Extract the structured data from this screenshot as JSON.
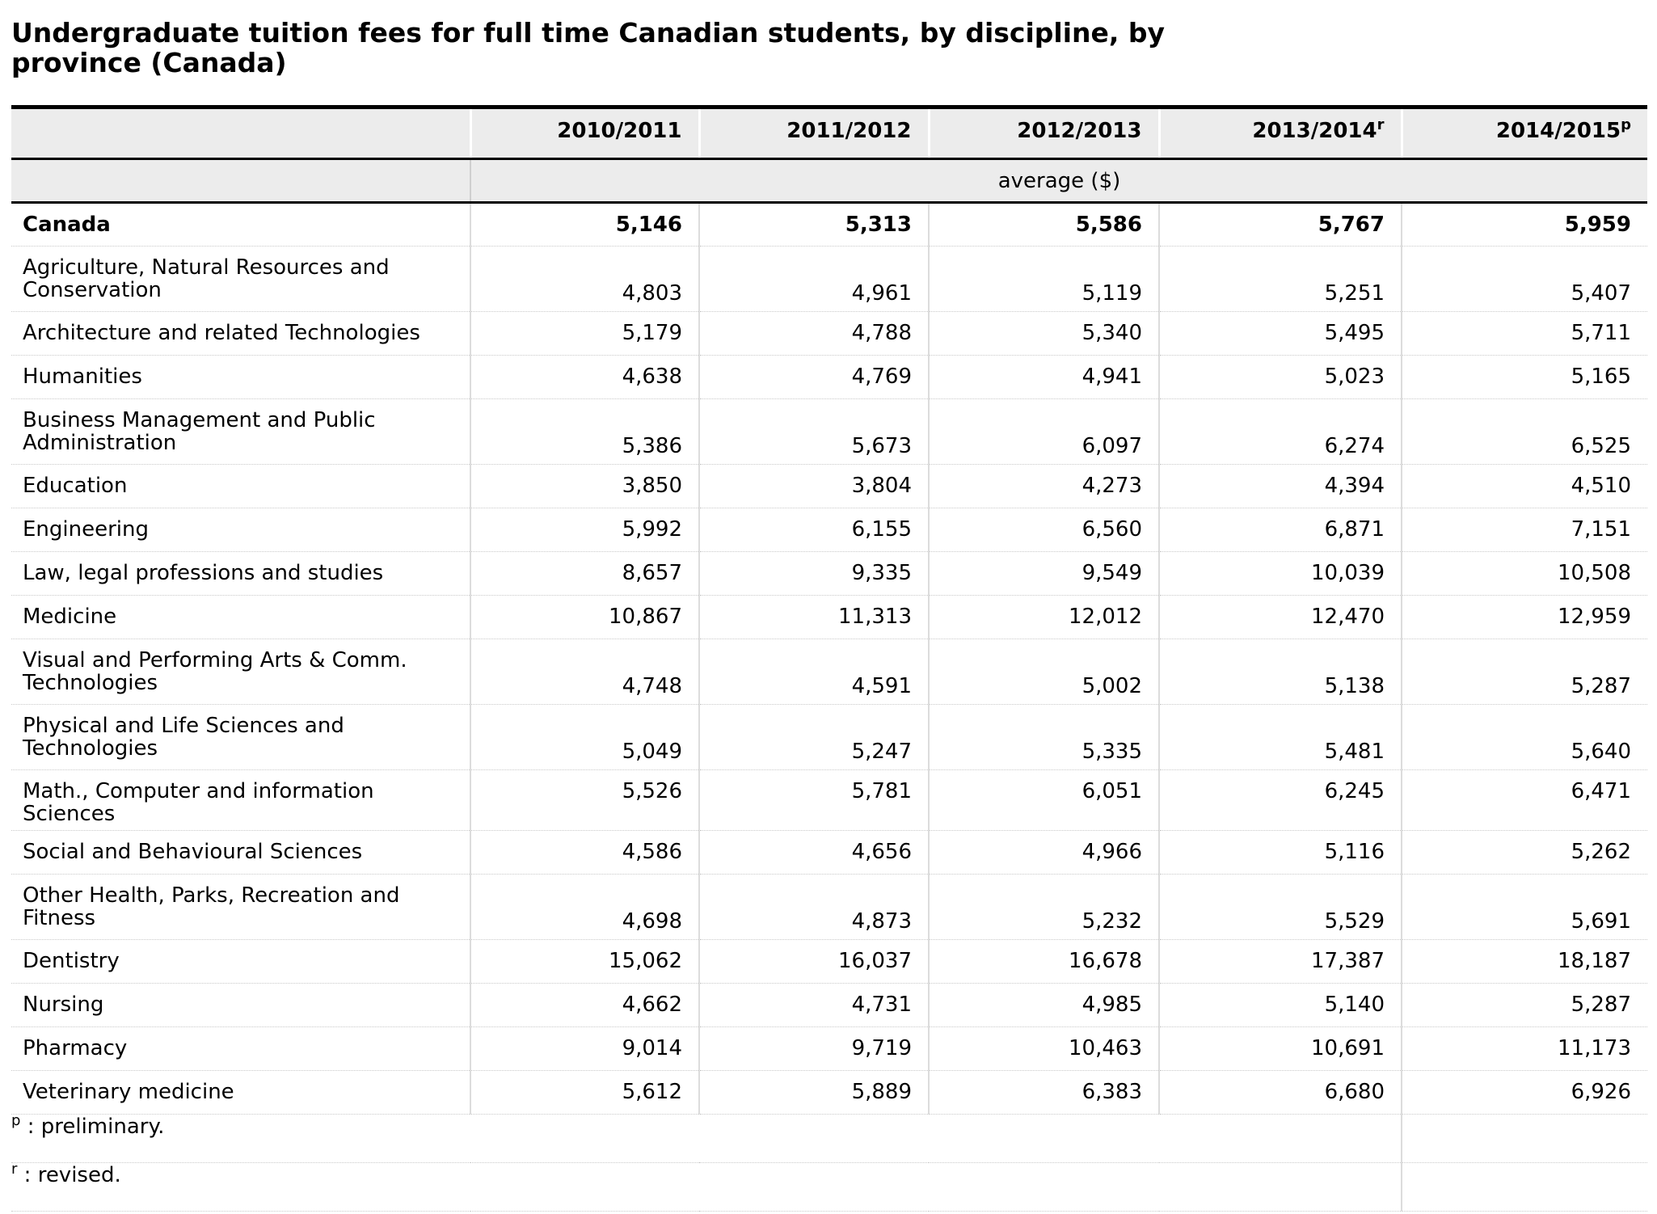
{
  "title": "Undergraduate tuition fees for full time Canadian students, by discipline, by province (Canada)",
  "table": {
    "columns": [
      {
        "year": "2010/2011",
        "marker": ""
      },
      {
        "year": "2011/2012",
        "marker": ""
      },
      {
        "year": "2012/2013",
        "marker": ""
      },
      {
        "year": "2013/2014",
        "marker": "r"
      },
      {
        "year": "2014/2015",
        "marker": "p"
      }
    ],
    "unit_label": "average ($)",
    "rows": [
      {
        "label": "Canada",
        "values": [
          "5,146",
          "5,313",
          "5,586",
          "5,767",
          "5,959"
        ],
        "bold": true
      },
      {
        "label": "Agriculture, Natural Resources and Conservation",
        "values": [
          "4,803",
          "4,961",
          "5,119",
          "5,251",
          "5,407"
        ],
        "bold": false
      },
      {
        "label": "Architecture and related Technologies",
        "values": [
          "5,179",
          "4,788",
          "5,340",
          "5,495",
          "5,711"
        ],
        "bold": false
      },
      {
        "label": "Humanities",
        "values": [
          "4,638",
          "4,769",
          "4,941",
          "5,023",
          "5,165"
        ],
        "bold": false
      },
      {
        "label": "Business Management and Public Administration",
        "values": [
          "5,386",
          "5,673",
          "6,097",
          "6,274",
          "6,525"
        ],
        "bold": false
      },
      {
        "label": "Education",
        "values": [
          "3,850",
          "3,804",
          "4,273",
          "4,394",
          "4,510"
        ],
        "bold": false
      },
      {
        "label": "Engineering",
        "values": [
          "5,992",
          "6,155",
          "6,560",
          "6,871",
          "7,151"
        ],
        "bold": false
      },
      {
        "label": "Law, legal professions and studies",
        "values": [
          "8,657",
          "9,335",
          "9,549",
          "10,039",
          "10,508"
        ],
        "bold": false
      },
      {
        "label": "Medicine",
        "values": [
          "10,867",
          "11,313",
          "12,012",
          "12,470",
          "12,959"
        ],
        "bold": false
      },
      {
        "label": "Visual and Performing Arts & Comm. Technologies",
        "values": [
          "4,748",
          "4,591",
          "5,002",
          "5,138",
          "5,287"
        ],
        "bold": false
      },
      {
        "label": "Physical and Life Sciences and Technologies",
        "values": [
          "5,049",
          "5,247",
          "5,335",
          "5,481",
          "5,640"
        ],
        "bold": false
      },
      {
        "label": "Math., Computer and information Sciences",
        "values": [
          "5,526",
          "5,781",
          "6,051",
          "6,245",
          "6,471"
        ],
        "bold": false
      },
      {
        "label": "Social and Behavioural Sciences",
        "values": [
          "4,586",
          "4,656",
          "4,966",
          "5,116",
          "5,262"
        ],
        "bold": false
      },
      {
        "label": "Other Health, Parks, Recreation and Fitness",
        "values": [
          "4,698",
          "4,873",
          "5,232",
          "5,529",
          "5,691"
        ],
        "bold": false
      },
      {
        "label": "Dentistry",
        "values": [
          "15,062",
          "16,037",
          "16,678",
          "17,387",
          "18,187"
        ],
        "bold": false
      },
      {
        "label": "Nursing",
        "values": [
          "4,662",
          "4,731",
          "4,985",
          "5,140",
          "5,287"
        ],
        "bold": false
      },
      {
        "label": "Pharmacy",
        "values": [
          "9,014",
          "9,719",
          "10,463",
          "10,691",
          "11,173"
        ],
        "bold": false
      },
      {
        "label": "Veterinary medicine",
        "values": [
          "5,612",
          "5,889",
          "6,383",
          "6,680",
          "6,926"
        ],
        "bold": false
      }
    ]
  },
  "footnotes": [
    {
      "marker": "p",
      "text": " : preliminary."
    },
    {
      "marker": "r",
      "text": " : revised."
    }
  ]
}
